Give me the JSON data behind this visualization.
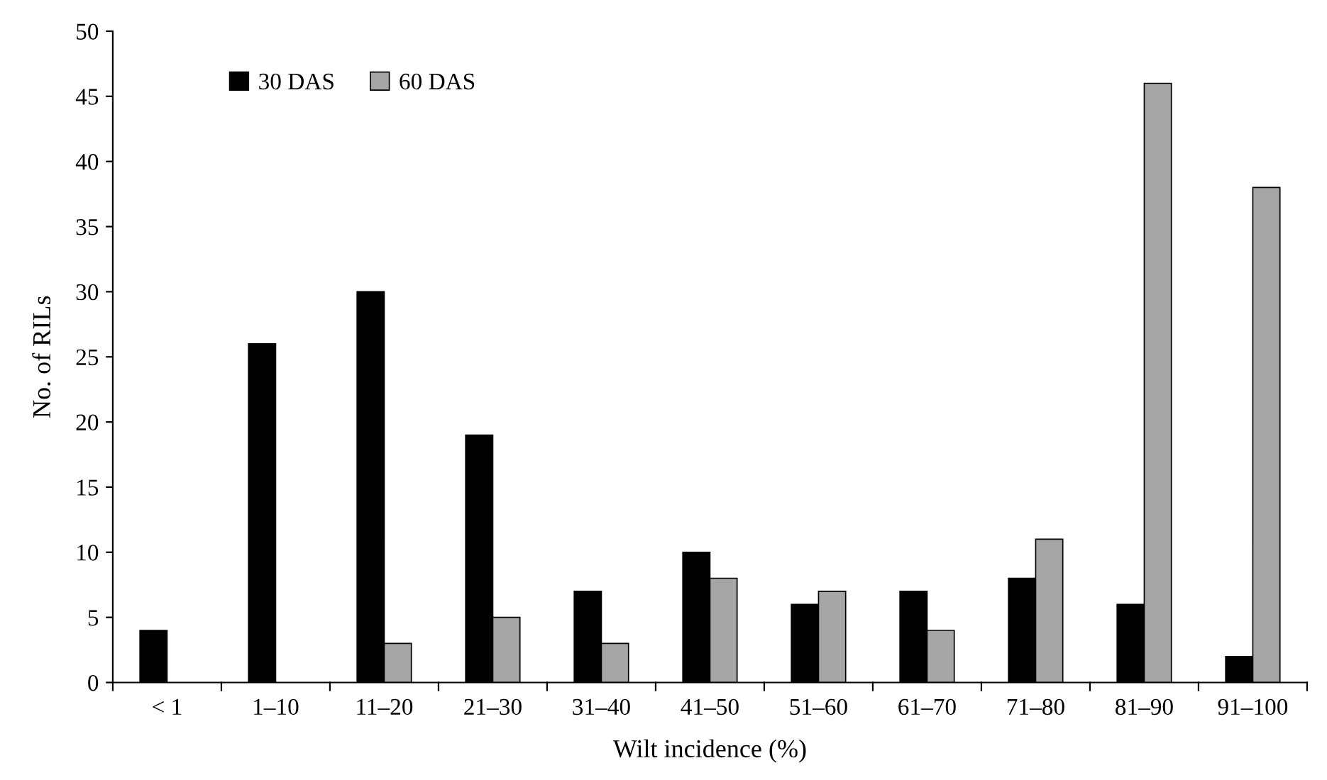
{
  "chart_data": {
    "type": "bar",
    "xlabel": "Wilt incidence (%)",
    "ylabel": "No. of RILs",
    "categories": [
      "< 1",
      "1–10",
      "11–20",
      "21–30",
      "31–40",
      "41–50",
      "51–60",
      "61–70",
      "71–80",
      "81–90",
      "91–100"
    ],
    "series": [
      {
        "name": "30 DAS",
        "color": "#000000",
        "values": [
          4,
          26,
          30,
          19,
          7,
          10,
          6,
          7,
          8,
          6,
          2
        ]
      },
      {
        "name": "60 DAS",
        "color": "#a6a6a6",
        "values": [
          null,
          null,
          3,
          5,
          3,
          8,
          7,
          4,
          11,
          46,
          38
        ]
      }
    ],
    "ylim": [
      0,
      50
    ],
    "yticks": [
      0,
      5,
      10,
      15,
      20,
      25,
      30,
      35,
      40,
      45,
      50
    ],
    "grid": false,
    "legend": "top left"
  }
}
